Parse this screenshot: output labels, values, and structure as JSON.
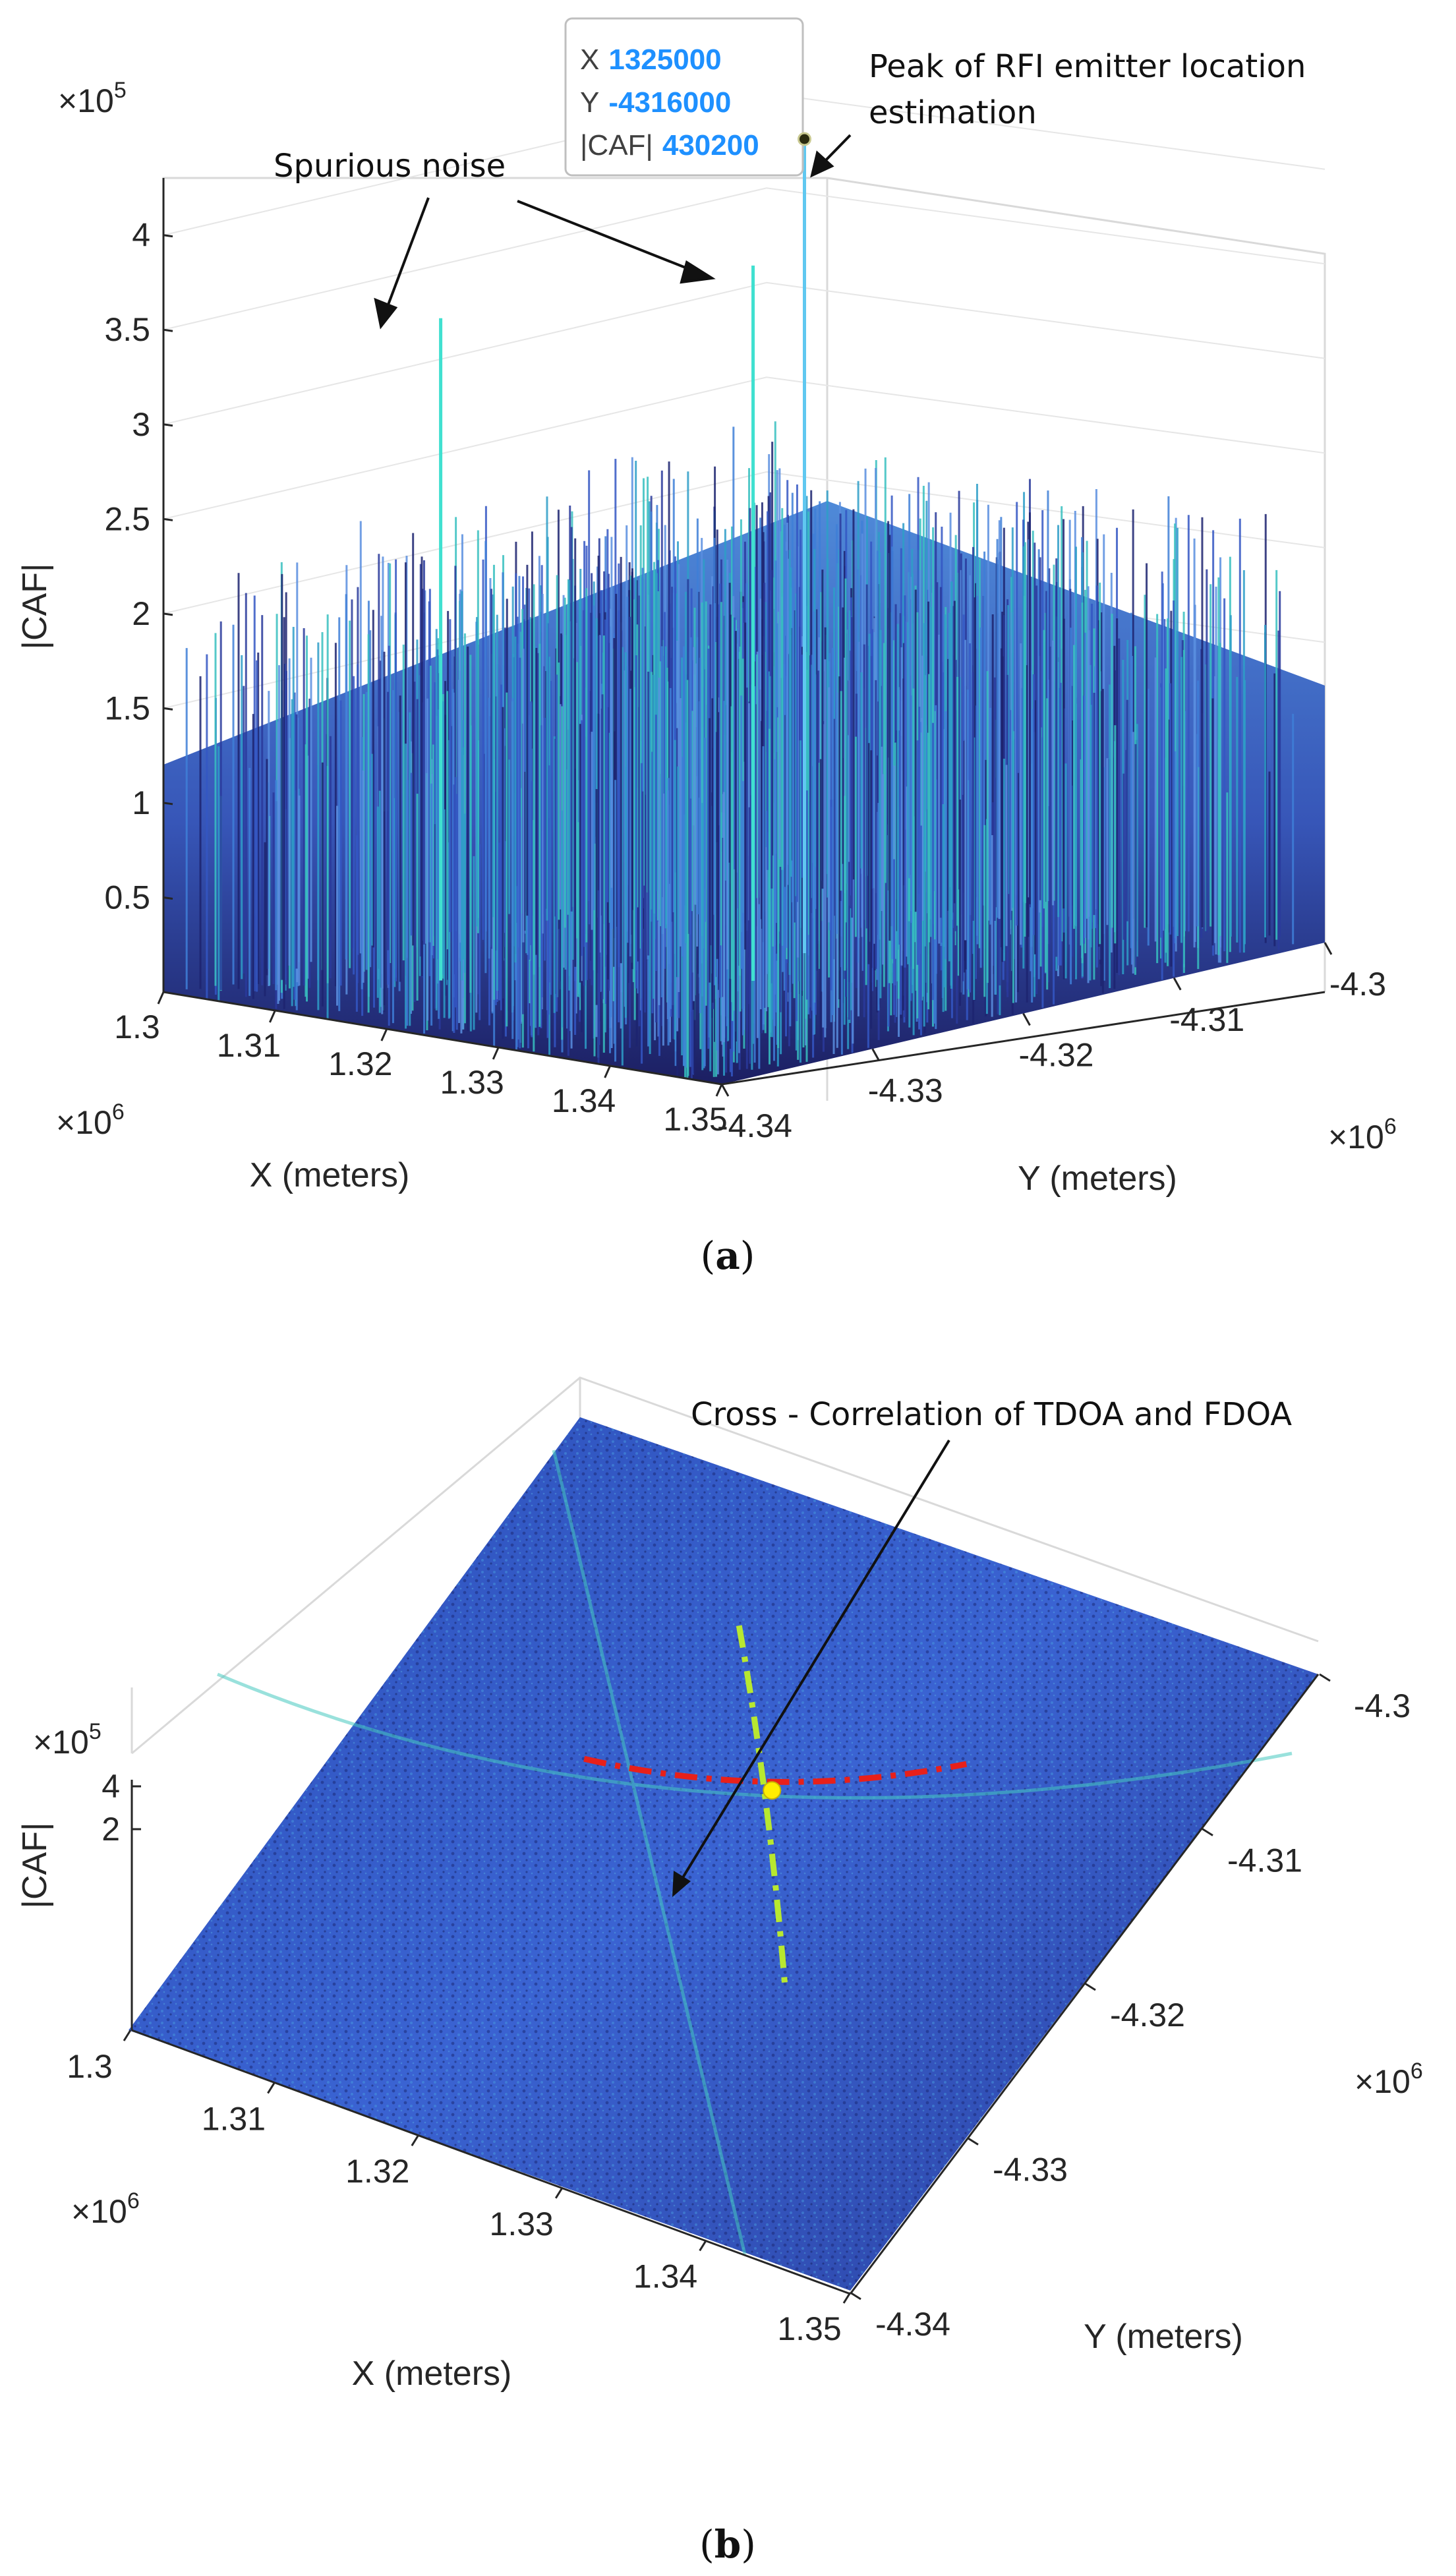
{
  "chart_data": [
    {
      "type": "surface3d",
      "panel": "(a)",
      "caption_letter": "a",
      "view": "side",
      "xlabel": "X (meters)",
      "ylabel": "Y (meters)",
      "zlabel": "|CAF|",
      "x_exponent_label": "×10",
      "x_exponent_power": "6",
      "y_exponent_label": "×10",
      "y_exponent_power": "6",
      "z_exponent_label": "×10",
      "z_exponent_power": "5",
      "x_ticks": [
        "1.3",
        "1.31",
        "1.32",
        "1.33",
        "1.34",
        "1.35"
      ],
      "y_ticks": [
        "-4.34",
        "-4.33",
        "-4.32",
        "-4.31",
        "-4.3"
      ],
      "z_ticks": [
        "0.5",
        "1",
        "1.5",
        "2",
        "2.5",
        "3",
        "3.5",
        "4"
      ],
      "xlim": [
        1300000,
        1350000
      ],
      "ylim": [
        -4340000,
        -4300000
      ],
      "zlim": [
        0,
        430200
      ],
      "noise_floor_max": 230000,
      "spurious_peaks": [
        {
          "x": 1312000,
          "y": -4330500,
          "caf": 350000
        },
        {
          "x": 1328500,
          "y": -4322000,
          "caf": 378000
        }
      ],
      "peak": {
        "x": 1325000,
        "y": -4316000,
        "caf": 430200
      },
      "datatip": {
        "x_key": "X",
        "x_val": "1325000",
        "y_key": "Y",
        "y_val": "-4316000",
        "z_key": "|CAF|",
        "z_val": "430200"
      },
      "annotations": {
        "spurious": "Spurious noise",
        "peak_line1": "Peak of RFI emitter location",
        "peak_line2": "estimation"
      },
      "colors": {
        "low": "#1a1a5e",
        "mid": "#3a5fd0",
        "high": "#30c8c8",
        "spike": "#40e0d0"
      }
    },
    {
      "type": "surface3d",
      "panel": "(b)",
      "caption_letter": "b",
      "view": "top",
      "xlabel": "X (meters)",
      "ylabel": "Y (meters)",
      "zlabel": "|CAF|",
      "x_exponent_label": "×10",
      "x_exponent_power": "6",
      "y_exponent_label": "×10",
      "y_exponent_power": "6",
      "z_exponent_label": "×10",
      "z_exponent_power": "5",
      "x_ticks": [
        "1.3",
        "1.31",
        "1.32",
        "1.33",
        "1.34",
        "1.35"
      ],
      "y_ticks": [
        "-4.34",
        "-4.33",
        "-4.32",
        "-4.31",
        "-4.3"
      ],
      "z_ticks": [
        "2",
        "4"
      ],
      "xlim": [
        1300000,
        1350000
      ],
      "ylim": [
        -4340000,
        -4300000
      ],
      "intersection": {
        "x": 1325000,
        "y": -4316000
      },
      "annotations": {
        "cross": "Cross - Correlation of TDOA and FDOA"
      },
      "colors": {
        "surface": "#2f52c8",
        "tdoa_curve": "#e8201a",
        "fdoa_curve": "#b8e830",
        "marker": "#ffee00"
      }
    }
  ]
}
